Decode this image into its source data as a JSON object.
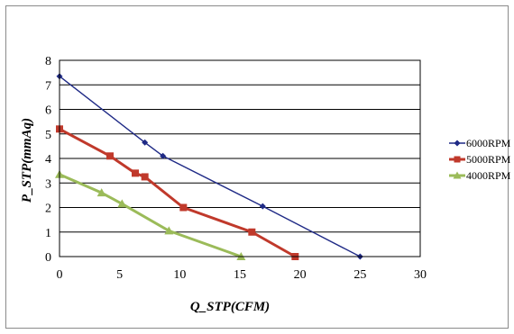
{
  "chart_data": {
    "type": "line",
    "title": "",
    "xlabel": "Q_STP(CFM)",
    "ylabel": "P_STP(mmAq)",
    "xlim": [
      0,
      30
    ],
    "ylim": [
      0,
      8
    ],
    "xticks": [
      0,
      5,
      10,
      15,
      20,
      25,
      30
    ],
    "yticks": [
      0,
      1,
      2,
      3,
      4,
      5,
      6,
      7,
      8
    ],
    "grid": "horizontal",
    "legend_position": "right",
    "series": [
      {
        "name": "6000RPM",
        "color": "#1f2a86",
        "marker": "diamond",
        "x": [
          0,
          7.1,
          8.6,
          16.9,
          25
        ],
        "y": [
          7.35,
          4.65,
          4.1,
          2.05,
          0
        ]
      },
      {
        "name": "5000RPM",
        "color": "#c0392b",
        "marker": "square",
        "x": [
          0,
          4.2,
          6.3,
          7.1,
          10.3,
          16.0,
          19.6
        ],
        "y": [
          5.2,
          4.1,
          3.4,
          3.25,
          2.0,
          1.0,
          0
        ]
      },
      {
        "name": "4000RPM",
        "color": "#9bbb59",
        "marker": "triangle",
        "x": [
          0,
          3.5,
          5.2,
          9.1,
          15.1
        ],
        "y": [
          3.35,
          2.6,
          2.15,
          1.05,
          0
        ]
      }
    ]
  }
}
